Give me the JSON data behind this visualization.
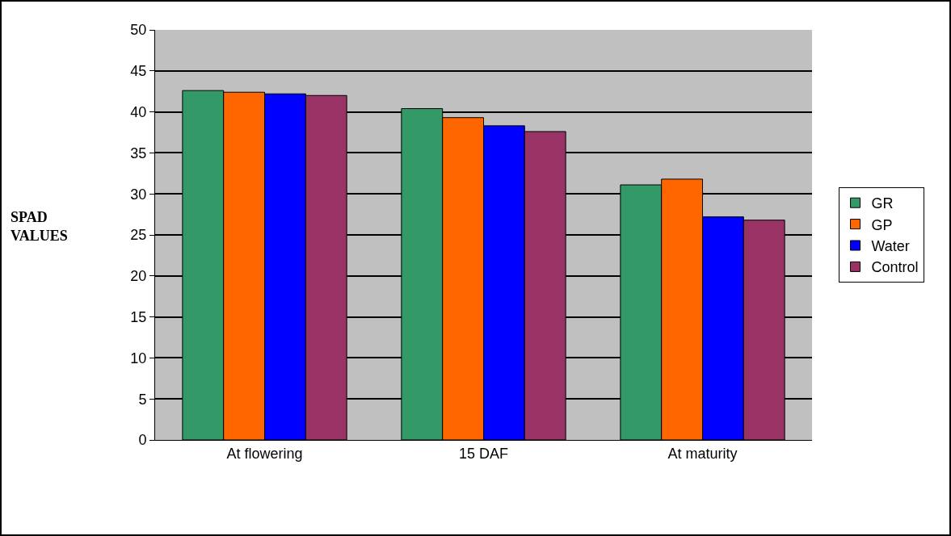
{
  "chart_data": {
    "type": "bar",
    "ylabel": "SPAD VALUES",
    "categories": [
      "At flowering",
      "15 DAF",
      "At maturity"
    ],
    "series": [
      {
        "name": "GR",
        "color": "#339966",
        "values": [
          42.6,
          40.4,
          31.1
        ]
      },
      {
        "name": "GP",
        "color": "#ff6600",
        "values": [
          42.4,
          39.3,
          31.8
        ]
      },
      {
        "name": "Water",
        "color": "#0000ff",
        "values": [
          42.2,
          38.3,
          27.2
        ]
      },
      {
        "name": "Control",
        "color": "#993366",
        "values": [
          42.0,
          37.6,
          26.8
        ]
      }
    ],
    "ylim": [
      0,
      50
    ],
    "yticks": [
      0,
      5,
      10,
      15,
      20,
      25,
      30,
      35,
      40,
      45,
      50
    ],
    "grid": "y",
    "legend": "right"
  }
}
